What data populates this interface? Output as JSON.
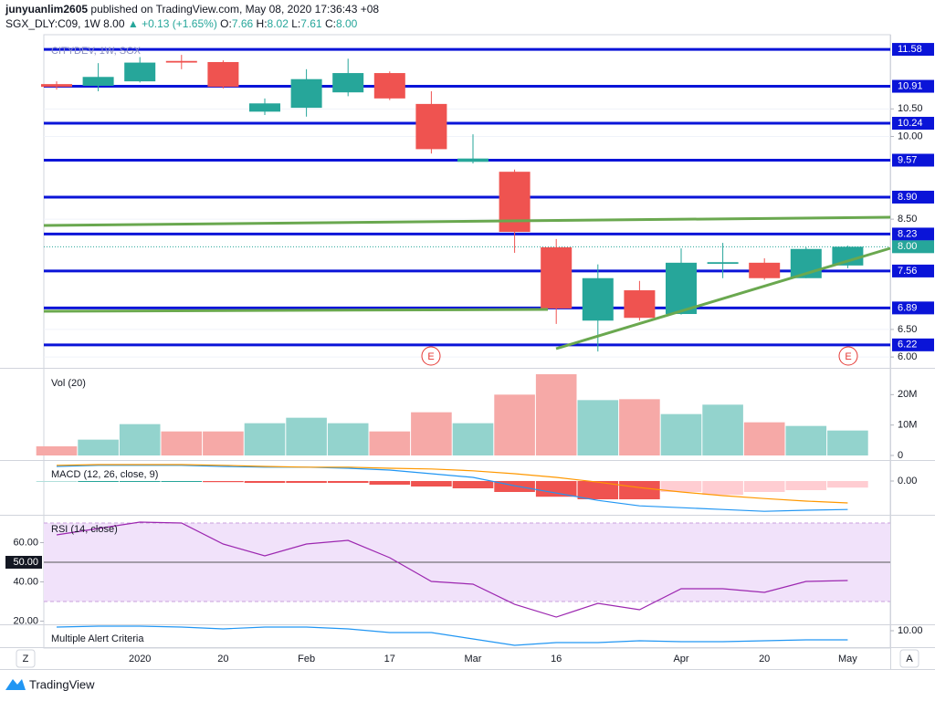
{
  "header": {
    "user": "junyuanlim2605",
    "published": "published on TradingView.com, May 08, 2020 17:36:43 +08",
    "symbol": "SGX_DLY:C09, 1W",
    "price": "8.00",
    "change": "▲ +0.13 (+1.65%)",
    "ohlc": [
      {
        "key": "O:",
        "value": "7.66"
      },
      {
        "key": "H:",
        "value": "8.02"
      },
      {
        "key": "L:",
        "value": "7.61"
      },
      {
        "key": "C:",
        "value": "8.00"
      }
    ]
  },
  "events": [
    {
      "label": "E"
    },
    {
      "label": "E"
    }
  ],
  "footer": {
    "brand": "TradingView",
    "left_button": "Z",
    "right_button": "A"
  },
  "chart_data": [
    {
      "type": "candlestick",
      "title": "CITYDEV, 1W, SGX",
      "categories": [
        null,
        null,
        "2020",
        null,
        "20",
        null,
        "Feb",
        null,
        "17",
        null,
        "Mar",
        null,
        "16",
        null,
        null,
        "Apr",
        null,
        "20",
        null,
        "May"
      ],
      "open": [
        10.95,
        10.92,
        11.0,
        11.37,
        11.35,
        10.45,
        10.52,
        10.8,
        11.15,
        10.59,
        9.54,
        9.36,
        7.99,
        6.66,
        7.21,
        6.78,
        7.69,
        7.71,
        7.43,
        7.66
      ],
      "high": [
        11.0,
        11.33,
        11.44,
        11.48,
        11.38,
        10.69,
        11.22,
        11.41,
        11.18,
        10.82,
        10.04,
        9.4,
        8.14,
        7.68,
        7.38,
        7.97,
        8.07,
        7.79,
        7.99,
        8.02
      ],
      "low": [
        10.85,
        10.82,
        10.98,
        11.22,
        10.87,
        10.39,
        10.36,
        10.73,
        10.66,
        9.69,
        9.51,
        7.89,
        6.6,
        6.1,
        6.66,
        6.77,
        7.43,
        7.4,
        7.43,
        7.61
      ],
      "close": [
        10.9,
        11.08,
        11.34,
        11.34,
        10.9,
        10.6,
        11.04,
        11.15,
        10.69,
        9.77,
        9.6,
        8.27,
        6.88,
        7.43,
        6.71,
        7.71,
        7.72,
        7.43,
        7.96,
        8.0
      ],
      "up_color": "#26a69a",
      "down_color": "#ef5350",
      "ylim": [
        5.82,
        11.78
      ],
      "yticks": [
        {
          "value": 6,
          "label": "6.00"
        },
        {
          "value": 6.5,
          "label": "6.50"
        },
        {
          "value": 8.5,
          "label": "8.50"
        },
        {
          "value": 10,
          "label": "10.00"
        },
        {
          "value": 10.5,
          "label": "10.50"
        }
      ],
      "levels": [
        {
          "value": 11.58,
          "label": "11.58"
        },
        {
          "value": 10.91,
          "label": "10.91"
        },
        {
          "value": 10.24,
          "label": "10.24"
        },
        {
          "value": 9.57,
          "label": "9.57"
        },
        {
          "value": 8.9,
          "label": "8.90"
        },
        {
          "value": 8.23,
          "label": "8.23"
        },
        {
          "value": 7.56,
          "label": "7.56"
        },
        {
          "value": 6.89,
          "label": "6.89"
        },
        {
          "value": 6.22,
          "label": "6.22"
        }
      ],
      "level_color": "#0a14d8",
      "last_price": {
        "value": 8,
        "label": "8.00"
      },
      "last_price_color": "#26a69a",
      "grid": true
    },
    {
      "type": "bar",
      "title": "Vol (20)",
      "values": [
        3000000,
        5200000,
        10300000,
        7900000,
        7900000,
        10600000,
        12400000,
        10600000,
        7900000,
        14200000,
        10600000,
        20000000,
        26700000,
        18200000,
        18500000,
        13600000,
        16700000,
        10900000,
        9700000,
        8200000
      ],
      "up_color": "#93d3cd",
      "down_color": "#f6a9a7",
      "ylim": [
        -1200000,
        27900000
      ],
      "yticks": [
        {
          "value": 0,
          "label": "0"
        },
        {
          "value": 10000000,
          "label": "10M"
        },
        {
          "value": 20000000,
          "label": "20M"
        }
      ]
    },
    {
      "type": "macd",
      "title": "MACD (12, 26, close, 9)",
      "histogram": [
        0.0,
        -0.02,
        -0.02,
        -0.02,
        -0.03,
        -0.05,
        -0.05,
        -0.05,
        -0.1,
        -0.15,
        -0.2,
        -0.3,
        -0.43,
        -0.5,
        -0.5,
        -0.3,
        -0.38,
        -0.3,
        -0.25,
        -0.18
      ],
      "histogram_colors": [
        "#b2dfdb",
        "#26a69a",
        "#26a69a",
        "#26a69a",
        "#ef5350",
        "#ef5350",
        "#ef5350",
        "#ef5350",
        "#ef5350",
        "#ef5350",
        "#ef5350",
        "#ef5350",
        "#ef5350",
        "#ef5350",
        "#ef5350",
        "#ffcdd2",
        "#ffcdd2",
        "#ffcdd2",
        "#ffcdd2",
        "#ffcdd2"
      ],
      "series": [
        {
          "name": "MACD",
          "color": "#2196f3",
          "values": [
            0.4,
            0.43,
            0.43,
            0.43,
            0.4,
            0.38,
            0.38,
            0.35,
            0.3,
            0.2,
            0.1,
            -0.13,
            -0.33,
            -0.53,
            -0.68,
            -0.73,
            -0.78,
            -0.83,
            -0.8,
            -0.78
          ]
        },
        {
          "name": "Signal",
          "color": "#ff9800",
          "values": [
            0.43,
            0.45,
            0.45,
            0.45,
            0.43,
            0.4,
            0.38,
            0.38,
            0.35,
            0.33,
            0.28,
            0.2,
            0.1,
            -0.03,
            -0.18,
            -0.3,
            -0.4,
            -0.48,
            -0.55,
            -0.6
          ]
        }
      ],
      "ylim": [
        -0.9,
        0.525
      ],
      "yticks": [
        {
          "value": 0,
          "label": "0.00"
        }
      ]
    },
    {
      "type": "line",
      "title": "RSI (14, close)",
      "values": [
        63.95,
        67.21,
        70.47,
        70.0,
        59.3,
        53.26,
        59.3,
        61.16,
        52.33,
        40.23,
        38.84,
        28.6,
        22.09,
        29.07,
        25.81,
        36.51,
        36.51,
        34.65,
        40.23,
        40.7
      ],
      "color": "#9c27b0",
      "band": [
        30,
        70
      ],
      "band_color": "#f1e2fa",
      "midline": {
        "value": 50,
        "label": "50.00"
      },
      "ylim": [
        18.84,
        73.26
      ],
      "axis_side": "left",
      "yticks": [
        {
          "value": 60,
          "label": "60.00"
        },
        {
          "value": 40,
          "label": "40.00"
        },
        {
          "value": 20,
          "label": "20.00"
        }
      ]
    },
    {
      "type": "line",
      "title": "Multiple Alert Criteria",
      "values": [
        12,
        12.5,
        12.5,
        12,
        11,
        12,
        12,
        11,
        9,
        9,
        5.5,
        2,
        3.5,
        3.5,
        4.5,
        4,
        4,
        4.5,
        5,
        5
      ],
      "color": "#2196f3",
      "ylim": [
        1.5,
        12.5
      ],
      "axis_side": "right",
      "yticks": [
        {
          "value": 10,
          "label": "10.00"
        }
      ]
    }
  ]
}
